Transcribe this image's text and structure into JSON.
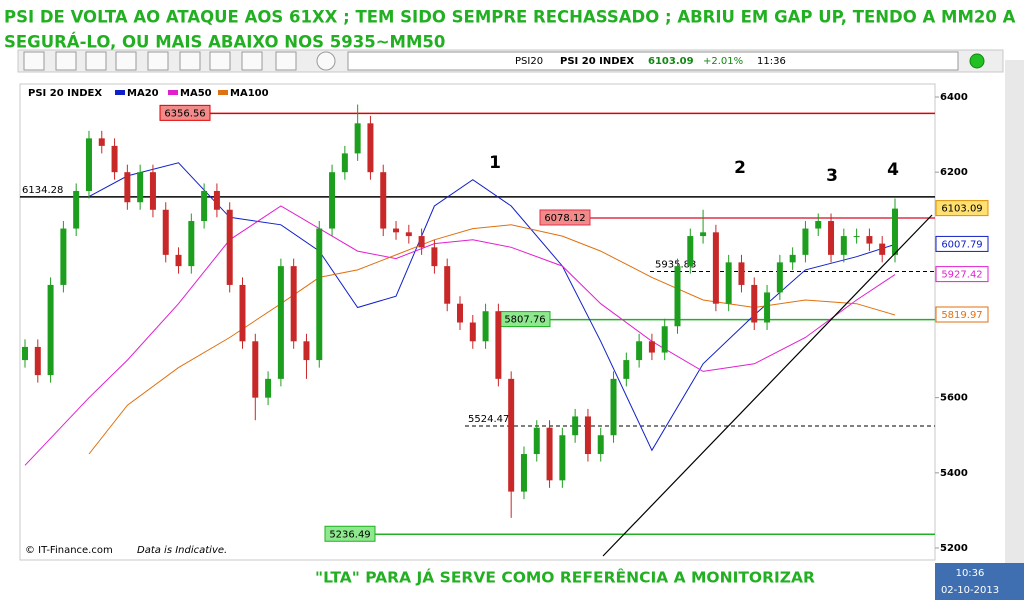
{
  "header": {
    "title_lines": [
      "PSI DE VOLTA AO ATAQUE AOS 61XX ;  TEM SIDO SEMPRE RECHASSADO  ;  ABRIU EM GAP UP, TENDO A MM20 A",
      "SEGURÁ-LO, OU MAIS ABAIXO NOS 5935~MM50"
    ]
  },
  "toolbar": {
    "symbol": "PSI20",
    "name": "PSI 20 INDEX",
    "change": "+2.01%",
    "time": "11:36"
  },
  "chart_data": {
    "type": "candlestick",
    "log_scale": false,
    "grid": false,
    "price": {
      "name": "PSI 20 INDEX",
      "up_color": "#1e9e1e",
      "down_color": "#c82828",
      "open": [
        5700,
        5735,
        5660,
        5900,
        6050,
        6150,
        6290,
        6270,
        6200,
        6120,
        6200,
        6100,
        5980,
        5950,
        6070,
        6150,
        6100,
        5900,
        5750,
        5600,
        5650,
        5950,
        5750,
        5700,
        6050,
        6200,
        6250,
        6330,
        6200,
        6050,
        6040,
        6030,
        6000,
        5950,
        5850,
        5800,
        5750,
        5830,
        5650,
        5350,
        5450,
        5520,
        5380,
        5500,
        5550,
        5450,
        5500,
        5650,
        5700,
        5750,
        5720,
        5790,
        5950,
        6030,
        6040,
        5850,
        5960,
        5900,
        5800,
        5880,
        5960,
        5980,
        6050,
        6070,
        5980,
        6030,
        6030,
        6010,
        5980
      ],
      "high": [
        5755,
        5755,
        5920,
        6070,
        6170,
        6310,
        6310,
        6290,
        6220,
        6220,
        6220,
        6120,
        6000,
        6090,
        6170,
        6170,
        6120,
        5920,
        5770,
        5670,
        5970,
        5970,
        5770,
        6070,
        6220,
        6270,
        6380,
        6350,
        6220,
        6070,
        6060,
        6050,
        6020,
        5970,
        5870,
        5820,
        5850,
        5850,
        5670,
        5470,
        5540,
        5540,
        5520,
        5570,
        5570,
        5520,
        5670,
        5720,
        5770,
        5770,
        5810,
        5970,
        6050,
        6100,
        6060,
        5980,
        5980,
        5920,
        5900,
        5980,
        6000,
        6070,
        6090,
        6090,
        6050,
        6050,
        6050,
        6030,
        6130
      ],
      "low": [
        5680,
        5640,
        5640,
        5880,
        6030,
        6130,
        6250,
        6180,
        6100,
        6100,
        6080,
        5960,
        5930,
        5930,
        6050,
        6080,
        5880,
        5730,
        5540,
        5580,
        5630,
        5730,
        5650,
        5680,
        6030,
        6180,
        6230,
        6180,
        6030,
        6020,
        6010,
        5980,
        5930,
        5830,
        5780,
        5730,
        5730,
        5630,
        5280,
        5330,
        5430,
        5360,
        5360,
        5480,
        5430,
        5430,
        5480,
        5630,
        5680,
        5700,
        5700,
        5770,
        5930,
        6010,
        5830,
        5830,
        5880,
        5780,
        5780,
        5860,
        5940,
        5960,
        6030,
        5960,
        5960,
        6010,
        5990,
        5960,
        5960
      ],
      "close": [
        5735,
        5660,
        5900,
        6050,
        6150,
        6290,
        6270,
        6200,
        6120,
        6200,
        6100,
        5980,
        5950,
        6070,
        6150,
        6100,
        5900,
        5750,
        5600,
        5650,
        5950,
        5750,
        5700,
        6050,
        6200,
        6250,
        6330,
        6200,
        6050,
        6040,
        6030,
        6000,
        5950,
        5850,
        5800,
        5750,
        5830,
        5650,
        5350,
        5450,
        5520,
        5380,
        5500,
        5550,
        5450,
        5500,
        5650,
        5700,
        5750,
        5720,
        5790,
        5950,
        6030,
        6040,
        5850,
        5960,
        5900,
        5800,
        5880,
        5960,
        5980,
        6050,
        6070,
        5980,
        6030,
        6030,
        6010,
        5980,
        6103.09
      ]
    },
    "series": [
      {
        "name": "MA20",
        "color": "#1020c8",
        "x": [
          5,
          8,
          12,
          16,
          20,
          23,
          26,
          29,
          32,
          35,
          38,
          42,
          45,
          49,
          53,
          57,
          61,
          65,
          68
        ],
        "values": [
          6135,
          6190,
          6225,
          6080,
          6060,
          5990,
          5840,
          5870,
          6110,
          6180,
          6110,
          5950,
          5750,
          5460,
          5690,
          5820,
          5940,
          5975,
          6007.79
        ]
      },
      {
        "name": "MA50",
        "color": "#e020d0",
        "x": [
          0,
          5,
          8,
          12,
          16,
          20,
          23,
          26,
          29,
          32,
          35,
          38,
          42,
          45,
          49,
          53,
          57,
          61,
          65,
          68
        ],
        "values": [
          5420,
          5600,
          5700,
          5850,
          6020,
          6110,
          6050,
          5990,
          5970,
          6010,
          6020,
          6000,
          5950,
          5850,
          5750,
          5670,
          5690,
          5760,
          5860,
          5927.42
        ]
      },
      {
        "name": "MA100",
        "color": "#e07010",
        "x": [
          5,
          8,
          12,
          16,
          20,
          23,
          26,
          29,
          32,
          35,
          38,
          42,
          45,
          49,
          53,
          57,
          61,
          65,
          68
        ],
        "values": [
          5450,
          5580,
          5680,
          5760,
          5850,
          5920,
          5940,
          5980,
          6020,
          6050,
          6060,
          6030,
          5990,
          5920,
          5860,
          5840,
          5860,
          5850,
          5819.97
        ]
      }
    ],
    "levels": [
      {
        "value": 6356.56,
        "color": "#e00000"
      },
      {
        "value": 6134.28,
        "color": "#000000"
      },
      {
        "value": 6078.12,
        "color": "#e0304a"
      },
      {
        "value": 5935.83,
        "color": "#000000"
      },
      {
        "value": 5807.76,
        "color": "#20b020"
      },
      {
        "value": 5524.47,
        "color": "#000000"
      },
      {
        "value": 5236.49,
        "color": "#20b020"
      }
    ],
    "annotations": [
      "1",
      "2",
      "3",
      "4"
    ],
    "ylim": [
      5168,
      6432
    ],
    "yticks": [
      5200,
      5400,
      5600,
      6200,
      6400
    ]
  },
  "footer": {
    "source": "© IT-Finance.com",
    "note": "Data is Indicative.",
    "caption": "\"LTA\" PARA JÁ SERVE COMO REFERÊNCIA A MONITORIZAR"
  },
  "taskbar": {
    "time": "10:36",
    "date": "02-10-2013"
  }
}
